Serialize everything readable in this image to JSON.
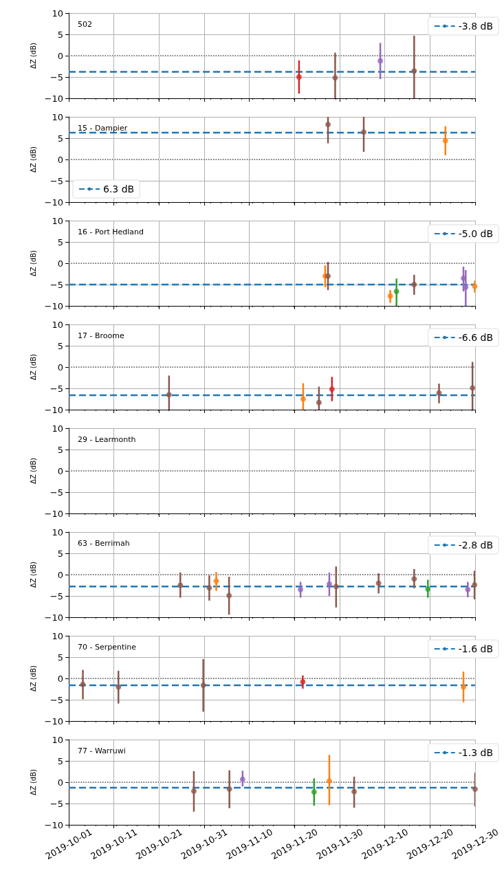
{
  "chart_data": [
    {
      "type": "scatter",
      "title": "502",
      "ylabel": "ΔZ (dB)",
      "xlim": [
        "2019-10-01",
        "2019-12-30"
      ],
      "xticks": [
        "2019-10-01",
        "2019-10-11",
        "2019-10-21",
        "2019-10-31",
        "2019-11-10",
        "2019-11-20",
        "2019-11-30",
        "2019-12-10",
        "2019-12-20",
        "2019-12-30"
      ],
      "ylim": [
        -10,
        10
      ],
      "yticks": [
        -10,
        -5,
        0,
        5,
        10
      ],
      "grid": true,
      "legend": "top right",
      "tick_labels": "y",
      "marker": "circle",
      "ref_lines": [
        {
          "axis": "y",
          "value": 0,
          "color": "#000000",
          "line_style": "dotted"
        }
      ],
      "series": [
        {
          "type": "line",
          "name": "-3.8 dB",
          "color": "#1f77b4",
          "line_style": "dashed",
          "marker": "none",
          "x": [
            "2019-10-01",
            "2019-12-30"
          ],
          "values": [
            -3.8,
            -3.8
          ]
        },
        {
          "color": "#d62728",
          "x": [
            "2019-11-21"
          ],
          "values": [
            -5.0
          ],
          "errors": [
            [
              -8.9,
              -1.1
            ]
          ]
        },
        {
          "color": "#8c564b",
          "x": [
            "2019-11-29",
            "2019-12-16T12:00"
          ],
          "values": [
            -5.2,
            -3.6
          ],
          "errors": [
            [
              -10,
              0.7
            ],
            [
              -10,
              4.7
            ]
          ]
        },
        {
          "color": "#9467bd",
          "x": [
            "2019-12-09"
          ],
          "values": [
            -1.2
          ],
          "errors": [
            [
              -5.5,
              3.0
            ]
          ]
        }
      ]
    },
    {
      "type": "scatter",
      "title": "15 - Dampier",
      "ylabel": "ΔZ (dB)",
      "xlim": [
        "2019-10-01",
        "2019-12-30"
      ],
      "xticks": [
        "2019-10-01",
        "2019-10-11",
        "2019-10-21",
        "2019-10-31",
        "2019-11-10",
        "2019-11-20",
        "2019-11-30",
        "2019-12-10",
        "2019-12-20",
        "2019-12-30"
      ],
      "ylim": [
        -10,
        10
      ],
      "yticks": [
        -10,
        -5,
        0,
        5,
        10
      ],
      "grid": true,
      "legend": "bottom left",
      "tick_labels": "y",
      "marker": "circle",
      "ref_lines": [
        {
          "axis": "y",
          "value": 0,
          "color": "#000000",
          "line_style": "dotted"
        }
      ],
      "series": [
        {
          "type": "line",
          "name": "6.3 dB",
          "color": "#1f77b4",
          "line_style": "dashed",
          "marker": "none",
          "x": [
            "2019-10-01",
            "2019-12-30"
          ],
          "values": [
            6.3,
            6.3
          ]
        },
        {
          "color": "#8c564b",
          "x": [
            "2019-11-27T10:00",
            "2019-12-05T08:00"
          ],
          "values": [
            8.2,
            6.4
          ],
          "errors": [
            [
              3.8,
              10
            ],
            [
              1.8,
              10
            ]
          ]
        },
        {
          "color": "#ff7f0e",
          "x": [
            "2019-12-23T10:00"
          ],
          "values": [
            4.4
          ],
          "errors": [
            [
              1.0,
              7.8
            ]
          ]
        }
      ]
    },
    {
      "type": "scatter",
      "title": "16 - Port Hedland",
      "ylabel": "ΔZ (dB)",
      "xlim": [
        "2019-10-01",
        "2019-12-30"
      ],
      "xticks": [
        "2019-10-01",
        "2019-10-11",
        "2019-10-21",
        "2019-10-31",
        "2019-11-10",
        "2019-11-20",
        "2019-11-30",
        "2019-12-10",
        "2019-12-20",
        "2019-12-30"
      ],
      "ylim": [
        -10,
        10
      ],
      "yticks": [
        -10,
        -5,
        0,
        5,
        10
      ],
      "grid": true,
      "legend": "top right",
      "tick_labels": "y",
      "marker": "circle",
      "ref_lines": [
        {
          "axis": "y",
          "value": 0,
          "color": "#000000",
          "line_style": "dotted"
        }
      ],
      "series": [
        {
          "type": "line",
          "name": "-5.0 dB",
          "color": "#1f77b4",
          "line_style": "dashed",
          "marker": "none",
          "x": [
            "2019-10-01",
            "2019-12-30"
          ],
          "values": [
            -5.0,
            -5.0
          ]
        },
        {
          "color": "#ff7f0e",
          "x": [
            "2019-11-26T19:00",
            "2019-12-11T05:00",
            "2019-12-29T22:00"
          ],
          "values": [
            -3.0,
            -7.7,
            -5.4
          ],
          "errors": [
            [
              -5.6,
              -0.5
            ],
            [
              -9.3,
              -6.3
            ],
            [
              -6.9,
              -4.1
            ]
          ]
        },
        {
          "color": "#8c564b",
          "x": [
            "2019-11-27T10:00",
            "2019-12-16T12:00"
          ],
          "values": [
            -3.0,
            -5.0
          ],
          "errors": [
            [
              -6.3,
              0.3
            ],
            [
              -7.4,
              -2.7
            ]
          ]
        },
        {
          "color": "#2ca02c",
          "x": [
            "2019-12-12T14:00"
          ],
          "values": [
            -6.6
          ],
          "errors": [
            [
              -10,
              -3.6
            ]
          ]
        },
        {
          "color": "#9467bd",
          "x": [
            "2019-12-27T10:00",
            "2019-12-27T22:00"
          ],
          "values": [
            -3.5,
            -5.6
          ],
          "errors": [
            [
              -6.6,
              -0.8
            ],
            [
              -10,
              -1.6
            ]
          ]
        }
      ]
    },
    {
      "type": "scatter",
      "title": "17 - Broome",
      "ylabel": "ΔZ (dB)",
      "xlim": [
        "2019-10-01",
        "2019-12-30"
      ],
      "xticks": [
        "2019-10-01",
        "2019-10-11",
        "2019-10-21",
        "2019-10-31",
        "2019-11-10",
        "2019-11-20",
        "2019-11-30",
        "2019-12-10",
        "2019-12-20",
        "2019-12-30"
      ],
      "ylim": [
        -10,
        10
      ],
      "yticks": [
        -10,
        -5,
        0,
        5,
        10
      ],
      "grid": true,
      "legend": "top right",
      "tick_labels": "y",
      "marker": "circle",
      "ref_lines": [
        {
          "axis": "y",
          "value": 0,
          "color": "#000000",
          "line_style": "dotted"
        }
      ],
      "series": [
        {
          "type": "line",
          "name": "-6.6 dB",
          "color": "#1f77b4",
          "line_style": "dashed",
          "marker": "none",
          "x": [
            "2019-10-01",
            "2019-12-30"
          ],
          "values": [
            -6.6,
            -6.6
          ]
        },
        {
          "color": "#8c564b",
          "x": [
            "2019-10-23T05:00",
            "2019-11-25T10:00",
            "2019-12-22",
            "2019-12-29T10:00"
          ],
          "values": [
            -6.5,
            -8.3,
            -6.1,
            -4.9
          ],
          "errors": [
            [
              -10,
              -2.0
            ],
            [
              -10,
              -4.6
            ],
            [
              -8.5,
              -3.9
            ],
            [
              -10,
              1.2
            ]
          ]
        },
        {
          "color": "#ff7f0e",
          "x": [
            "2019-11-21T22:00"
          ],
          "values": [
            -7.5
          ],
          "errors": [
            [
              -10,
              -3.8
            ]
          ]
        },
        {
          "color": "#d62728",
          "x": [
            "2019-11-28T07:00"
          ],
          "values": [
            -5.2
          ],
          "errors": [
            [
              -8.0,
              -2.3
            ]
          ]
        }
      ]
    },
    {
      "type": "scatter",
      "title": "29 - Learmonth",
      "ylabel": "ΔZ (dB)",
      "xlim": [
        "2019-10-01",
        "2019-12-30"
      ],
      "xticks": [
        "2019-10-01",
        "2019-10-11",
        "2019-10-21",
        "2019-10-31",
        "2019-11-10",
        "2019-11-20",
        "2019-11-30",
        "2019-12-10",
        "2019-12-20",
        "2019-12-30"
      ],
      "ylim": [
        -10,
        10
      ],
      "yticks": [
        -10,
        -5,
        0,
        5,
        10
      ],
      "grid": true,
      "tick_labels": "y",
      "ref_lines": [
        {
          "axis": "y",
          "value": 0,
          "color": "#000000",
          "line_style": "dotted"
        }
      ]
    },
    {
      "type": "scatter",
      "title": "63 - Berrimah",
      "ylabel": "ΔZ (dB)",
      "xlim": [
        "2019-10-01",
        "2019-12-30"
      ],
      "xticks": [
        "2019-10-01",
        "2019-10-11",
        "2019-10-21",
        "2019-10-31",
        "2019-11-10",
        "2019-11-20",
        "2019-11-30",
        "2019-12-10",
        "2019-12-20",
        "2019-12-30"
      ],
      "ylim": [
        -10,
        10
      ],
      "yticks": [
        -10,
        -5,
        0,
        5,
        10
      ],
      "grid": true,
      "legend": "top right",
      "tick_labels": "y",
      "marker": "circle",
      "ref_lines": [
        {
          "axis": "y",
          "value": 0,
          "color": "#000000",
          "line_style": "dotted"
        }
      ],
      "series": [
        {
          "type": "line",
          "name": "-2.8 dB",
          "color": "#1f77b4",
          "line_style": "dashed",
          "marker": "none",
          "x": [
            "2019-10-01",
            "2019-12-30"
          ],
          "values": [
            -2.8,
            -2.8
          ]
        },
        {
          "color": "#8c564b",
          "x": [
            "2019-10-25T17:00",
            "2019-11-01T03:00",
            "2019-11-05T12:00",
            "2019-11-29T05:00",
            "2019-12-08T15:00",
            "2019-12-16T12:00",
            "2019-12-29T21:00"
          ],
          "values": [
            -2.5,
            -3.1,
            -4.9,
            -2.8,
            -2.0,
            -1.0,
            -2.4
          ],
          "errors": [
            [
              -5.4,
              0.5
            ],
            [
              -6.1,
              -0.2
            ],
            [
              -9.4,
              -0.5
            ],
            [
              -7.7,
              1.9
            ],
            [
              -4.4,
              0.3
            ],
            [
              -3.2,
              1.3
            ],
            [
              -5.8,
              0.9
            ]
          ]
        },
        {
          "color": "#ff7f0e",
          "x": [
            "2019-11-02T16:00"
          ],
          "values": [
            -1.5
          ],
          "errors": [
            [
              -3.8,
              0.6
            ]
          ]
        },
        {
          "color": "#9467bd",
          "x": [
            "2019-11-21T08:00",
            "2019-11-27T17:00",
            "2019-12-28T09:00"
          ],
          "values": [
            -3.5,
            -2.2,
            -3.5
          ],
          "errors": [
            [
              -5.4,
              -1.7
            ],
            [
              -5.0,
              0.5
            ],
            [
              -5.3,
              -1.7
            ]
          ]
        },
        {
          "color": "#2ca02c",
          "x": [
            "2019-12-19T13:00"
          ],
          "values": [
            -3.4
          ],
          "errors": [
            [
              -5.4,
              -1.2
            ]
          ]
        }
      ]
    },
    {
      "type": "scatter",
      "title": "70 - Serpentine",
      "ylabel": "ΔZ (dB)",
      "xlim": [
        "2019-10-01",
        "2019-12-30"
      ],
      "xticks": [
        "2019-10-01",
        "2019-10-11",
        "2019-10-21",
        "2019-10-31",
        "2019-11-10",
        "2019-11-20",
        "2019-11-30",
        "2019-12-10",
        "2019-12-20",
        "2019-12-30"
      ],
      "ylim": [
        -10,
        10
      ],
      "yticks": [
        -10,
        -5,
        0,
        5,
        10
      ],
      "grid": true,
      "legend": "top right",
      "tick_labels": "y",
      "marker": "circle",
      "ref_lines": [
        {
          "axis": "y",
          "value": 0,
          "color": "#000000",
          "line_style": "dotted"
        }
      ],
      "series": [
        {
          "type": "line",
          "name": "-1.6 dB",
          "color": "#1f77b4",
          "line_style": "dashed",
          "marker": "none",
          "x": [
            "2019-10-01",
            "2019-12-30"
          ],
          "values": [
            -1.6,
            -1.6
          ]
        },
        {
          "color": "#8c564b",
          "x": [
            "2019-10-04T03:00",
            "2019-10-12",
            "2019-10-30T19:00"
          ],
          "values": [
            -1.4,
            -2.0,
            -1.6
          ],
          "errors": [
            [
              -4.9,
              2.0
            ],
            [
              -5.9,
              1.8
            ],
            [
              -7.8,
              4.5
            ]
          ]
        },
        {
          "color": "#d62728",
          "x": [
            "2019-11-21T20:00"
          ],
          "values": [
            -0.8
          ],
          "errors": [
            [
              -2.4,
              0.7
            ]
          ]
        },
        {
          "color": "#ff7f0e",
          "x": [
            "2019-12-27T10:00"
          ],
          "values": [
            -2.0
          ],
          "errors": [
            [
              -5.6,
              1.6
            ]
          ]
        }
      ]
    },
    {
      "type": "scatter",
      "title": "77 - Warruwi",
      "ylabel": "ΔZ (dB)",
      "xlim": [
        "2019-10-01",
        "2019-12-30"
      ],
      "xticks": [
        "2019-10-01",
        "2019-10-11",
        "2019-10-21",
        "2019-10-31",
        "2019-11-10",
        "2019-11-20",
        "2019-11-30",
        "2019-12-10",
        "2019-12-20",
        "2019-12-30"
      ],
      "ylim": [
        -10,
        10
      ],
      "yticks": [
        -10,
        -5,
        0,
        5,
        10
      ],
      "grid": true,
      "legend": "top right",
      "marker": "circle",
      "ref_lines": [
        {
          "axis": "y",
          "value": 0,
          "color": "#000000",
          "line_style": "dotted"
        }
      ],
      "series": [
        {
          "type": "line",
          "name": "-1.3 dB",
          "color": "#1f77b4",
          "line_style": "dashed",
          "marker": "none",
          "x": [
            "2019-10-01",
            "2019-12-30"
          ],
          "values": [
            -1.3,
            -1.3
          ]
        },
        {
          "color": "#8c564b",
          "x": [
            "2019-10-28T17:00",
            "2019-11-05T14:00",
            "2019-12-03T05:00",
            "2019-12-30"
          ],
          "values": [
            -2.1,
            -1.6,
            -2.2,
            -1.6
          ],
          "errors": [
            [
              -6.9,
              2.6
            ],
            [
              -6.1,
              2.8
            ],
            [
              -6.0,
              1.3
            ],
            [
              -5.7,
              2.2
            ]
          ]
        },
        {
          "color": "#9467bd",
          "x": [
            "2019-11-08T12:00"
          ],
          "values": [
            0.7
          ],
          "errors": [
            [
              -1.0,
              2.7
            ]
          ]
        },
        {
          "color": "#2ca02c",
          "x": [
            "2019-11-24T08:00"
          ],
          "values": [
            -2.3
          ],
          "errors": [
            [
              -5.5,
              0.9
            ]
          ]
        },
        {
          "color": "#ff7f0e",
          "x": [
            "2019-11-27T17:00"
          ],
          "values": [
            0.3
          ],
          "errors": [
            [
              -5.4,
              6.4
            ]
          ]
        }
      ]
    }
  ]
}
